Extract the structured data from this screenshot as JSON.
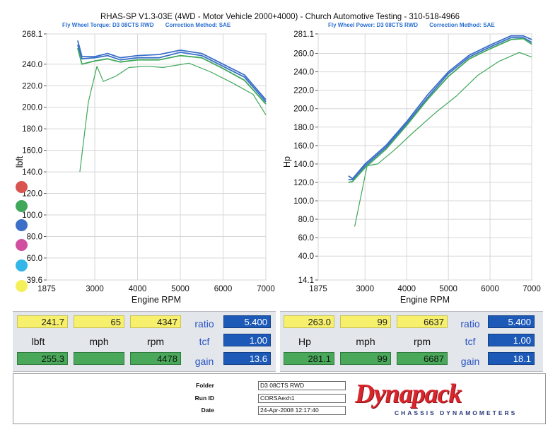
{
  "title": "RHAS-SP V1.3-03E  (4WD - Motor Vehicle 2000+4000) - Church Automotive Testing - 310-518-4966",
  "left_header": {
    "left": "Fly Wheel Torque: D3 08CTS RWD",
    "right": "Correction Method: SAE"
  },
  "right_header": {
    "left": "Fly Wheel Power: D3 08CTS RWD",
    "right": "Correction Method: SAE"
  },
  "colors": {
    "red": "#d9534f",
    "green": "#3fa85a",
    "blue": "#3b6fc8",
    "magenta": "#d24ea0",
    "cyan": "#33b6e8",
    "yellow": "#f5ef5a"
  },
  "chart_data": [
    {
      "type": "line",
      "xlabel": "Engine RPM",
      "ylabel": "lbft",
      "xlim": [
        1875,
        7000
      ],
      "ylim": [
        39.6,
        268.1
      ],
      "x_ticks": [
        "1875",
        "3000",
        "4000",
        "5000",
        "6000",
        "7000"
      ],
      "y_ticks": [
        "268.1",
        "240.0",
        "220.0",
        "200.0",
        "180.0",
        "160.0",
        "140.0",
        "120.0",
        "100.0",
        "80.0",
        "60.0",
        "39.6"
      ],
      "series": [
        {
          "color": "blue",
          "points": [
            [
              2600,
              262
            ],
            [
              2700,
              247
            ],
            [
              3000,
              247
            ],
            [
              3300,
              250
            ],
            [
              3600,
              246
            ],
            [
              4000,
              248
            ],
            [
              4500,
              249
            ],
            [
              5000,
              253
            ],
            [
              5500,
              250
            ],
            [
              6000,
              240
            ],
            [
              6500,
              230
            ],
            [
              7000,
              207
            ]
          ]
        },
        {
          "color": "blue",
          "points": [
            [
              2600,
              258
            ],
            [
              2700,
              245
            ],
            [
              3000,
              246
            ],
            [
              3300,
              248
            ],
            [
              3600,
              244
            ],
            [
              4000,
              246
            ],
            [
              4500,
              246
            ],
            [
              5000,
              251
            ],
            [
              5500,
              248
            ],
            [
              6000,
              238
            ],
            [
              6500,
              228
            ],
            [
              7000,
              205
            ]
          ]
        },
        {
          "color": "green",
          "points": [
            [
              2600,
              255
            ],
            [
              2700,
              240
            ],
            [
              3000,
              243
            ],
            [
              3300,
              245
            ],
            [
              3600,
              242
            ],
            [
              4000,
              244
            ],
            [
              4500,
              244
            ],
            [
              5000,
              248
            ],
            [
              5500,
              246
            ],
            [
              6000,
              236
            ],
            [
              6500,
              225
            ],
            [
              7000,
              203
            ]
          ]
        },
        {
          "color": "green",
          "points": [
            [
              2650,
              140
            ],
            [
              2850,
              205
            ],
            [
              3050,
              238
            ],
            [
              3200,
              224
            ],
            [
              3500,
              229
            ],
            [
              3800,
              237
            ],
            [
              4200,
              238
            ],
            [
              4600,
              237
            ],
            [
              5200,
              241
            ],
            [
              5700,
              233
            ],
            [
              6200,
              223
            ],
            [
              6700,
              212
            ],
            [
              7000,
              193
            ]
          ]
        }
      ]
    },
    {
      "type": "line",
      "xlabel": "Engine RPM",
      "ylabel": "Hp",
      "xlim": [
        1875,
        7000
      ],
      "ylim": [
        14.1,
        281.1
      ],
      "x_ticks": [
        "1875",
        "3000",
        "4000",
        "5000",
        "6000",
        "7000"
      ],
      "y_ticks": [
        "281.1",
        "260.0",
        "240.0",
        "220.0",
        "200.0",
        "180.0",
        "160.0",
        "140.0",
        "120.0",
        "100.0",
        "80.0",
        "60.0",
        "40.0",
        "14.1"
      ],
      "series": [
        {
          "color": "blue",
          "points": [
            [
              2600,
              127
            ],
            [
              2700,
              124
            ],
            [
              3000,
              140
            ],
            [
              3500,
              160
            ],
            [
              4000,
              186
            ],
            [
              4500,
              215
            ],
            [
              5000,
              240
            ],
            [
              5500,
              258
            ],
            [
              6000,
              269
            ],
            [
              6500,
              279
            ],
            [
              6800,
              279
            ],
            [
              7000,
              275
            ]
          ]
        },
        {
          "color": "blue",
          "points": [
            [
              2600,
              123
            ],
            [
              2700,
              123
            ],
            [
              3000,
              138
            ],
            [
              3500,
              158
            ],
            [
              4000,
              184
            ],
            [
              4500,
              212
            ],
            [
              5000,
              238
            ],
            [
              5500,
              256
            ],
            [
              6000,
              267
            ],
            [
              6500,
              277
            ],
            [
              6800,
              277
            ],
            [
              7000,
              272
            ]
          ]
        },
        {
          "color": "green",
          "points": [
            [
              2600,
              120
            ],
            [
              2700,
              121
            ],
            [
              3000,
              136
            ],
            [
              3500,
              156
            ],
            [
              4000,
              182
            ],
            [
              4500,
              210
            ],
            [
              5000,
              235
            ],
            [
              5500,
              254
            ],
            [
              6000,
              265
            ],
            [
              6500,
              275
            ],
            [
              6800,
              276
            ],
            [
              7000,
              270
            ]
          ]
        },
        {
          "color": "green",
          "points": [
            [
              2750,
              72
            ],
            [
              2900,
              105
            ],
            [
              3050,
              138
            ],
            [
              3300,
              140
            ],
            [
              3700,
              155
            ],
            [
              4200,
              176
            ],
            [
              4700,
              196
            ],
            [
              5200,
              214
            ],
            [
              5700,
              236
            ],
            [
              6200,
              251
            ],
            [
              6700,
              261
            ],
            [
              7000,
              256
            ]
          ]
        }
      ]
    }
  ],
  "left_panel": {
    "row1": [
      "241.7",
      "65",
      "4347"
    ],
    "labels": [
      "lbft",
      "mph",
      "rpm"
    ],
    "row3": [
      "255.3",
      "",
      "4478"
    ],
    "side_labels": [
      "ratio",
      "tcf",
      "gain"
    ],
    "side_values": [
      "5.400",
      "1.00",
      "13.6"
    ]
  },
  "right_panel": {
    "row1": [
      "263.0",
      "99",
      "6637"
    ],
    "labels": [
      "Hp",
      "mph",
      "rpm"
    ],
    "row3": [
      "281.1",
      "99",
      "6687"
    ],
    "side_labels": [
      "ratio",
      "tcf",
      "gain"
    ],
    "side_values": [
      "5.400",
      "1.00",
      "18.1"
    ]
  },
  "footer": {
    "folder_label": "Folder",
    "folder": "D3 08CTS RWD",
    "run_label": "Run ID",
    "run": "CORSAexh1",
    "date_label": "Date",
    "date": "24-Apr-2008  12:17:40",
    "brand": "Dynapack",
    "tagline": "CHASSIS DYNAMOMETERS"
  }
}
